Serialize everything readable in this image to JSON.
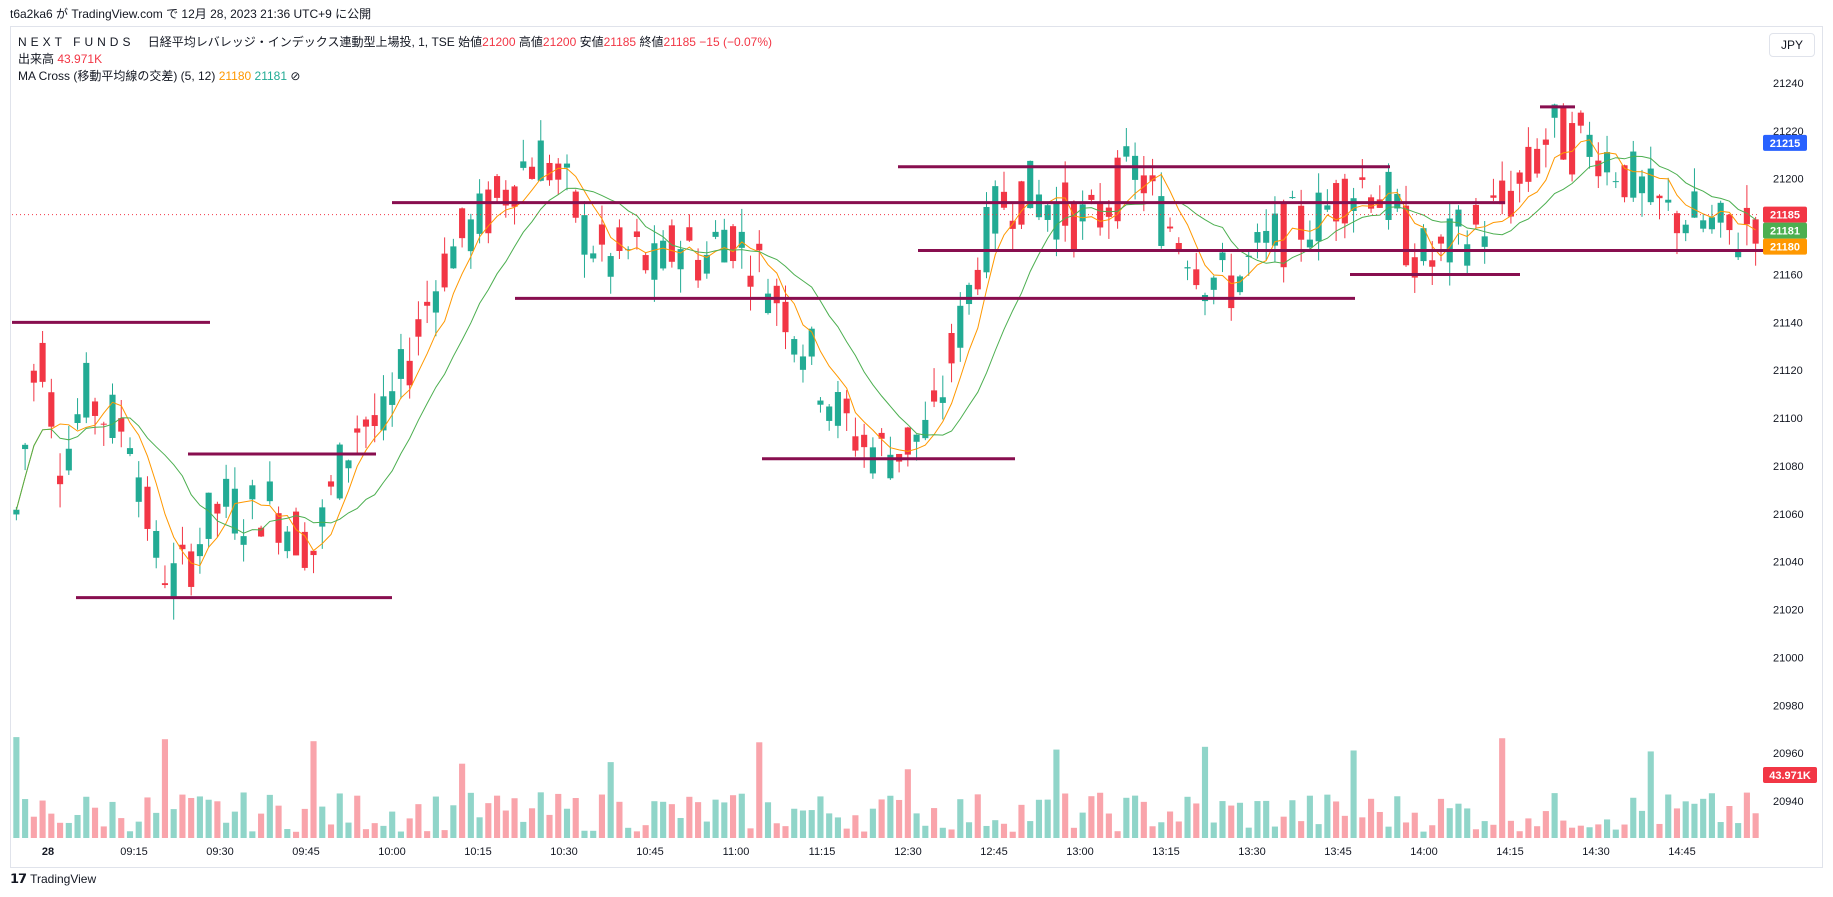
{
  "header": {
    "published": "t6a2ka6 が TradingView.com で 12月 28, 2023 21:36 UTC+9 に公開"
  },
  "legend": {
    "symbol": "NEXT FUNDS",
    "title": "日経平均レバレッジ・インデックス連動型上場投, 1, TSE",
    "open_label": "始値",
    "open": "21200",
    "high_label": "高値",
    "high": "21200",
    "low_label": "安値",
    "low": "21185",
    "close_label": "終値",
    "close": "21185",
    "change": "−15 (−0.07%)",
    "volume_label": "出来高",
    "volume": "43.971K",
    "ma_label": "MA Cross (移動平均線の交差) (5, 12)",
    "ma_fast": "21180",
    "ma_slow": "21181",
    "ma_icon": "⊘"
  },
  "currency": "JPY",
  "footer": {
    "brand": "TradingView"
  },
  "colors": {
    "up": "#22ab94",
    "down": "#f23645",
    "ma_fast": "#ff9800",
    "ma_slow": "#4caf50",
    "drawing": "#880e4f",
    "box": "#f57c00",
    "cross": "#2962ff"
  },
  "badges": {
    "last_high": "21215",
    "last_close": "21185",
    "ma_slow": "21181",
    "ma_fast": "21180",
    "volume": "43.971K"
  },
  "chart_data": {
    "type": "candlestick",
    "interval": "1 minute",
    "y_ticks": [
      20940,
      20960,
      20980,
      21000,
      21020,
      21040,
      21060,
      21080,
      21100,
      21120,
      21140,
      21160,
      21180,
      21200,
      21220,
      21240
    ],
    "x_ticks": [
      "28",
      "09:15",
      "09:30",
      "09:45",
      "10:00",
      "10:15",
      "10:30",
      "10:45",
      "11:00",
      "11:15",
      "12:30",
      "12:45",
      "13:00",
      "13:15",
      "13:30",
      "13:45",
      "14:00",
      "14:15",
      "14:30",
      "14:45"
    ],
    "close_path": [
      21060,
      21135,
      21080,
      21110,
      21100,
      21095,
      21045,
      21030,
      21050,
      21065,
      21060,
      21065,
      21055,
      21045,
      21075,
      21100,
      21095,
      21120,
      21150,
      21170,
      21180,
      21190,
      21205,
      21210,
      21195,
      21175,
      21165,
      21170,
      21160,
      21175,
      21165,
      21180,
      21170,
      21155,
      21140,
      21120,
      21100,
      21090,
      21085,
      21090,
      21095,
      21130,
      21165,
      21190,
      21195,
      21190,
      21185,
      21180,
      21195,
      21205,
      21185,
      21175,
      21160,
      21155,
      21165,
      21175,
      21180,
      21185,
      21195,
      21200,
      21190,
      21170,
      21165,
      21175,
      21180,
      21190,
      21200,
      21220,
      21215,
      21215,
      21205,
      21195,
      21185,
      21185,
      21180,
      21175,
      21185
    ],
    "horizontal_levels": [
      21140,
      21025,
      21085,
      21190,
      21150,
      21083,
      21205,
      21170,
      21160,
      21230
    ]
  }
}
